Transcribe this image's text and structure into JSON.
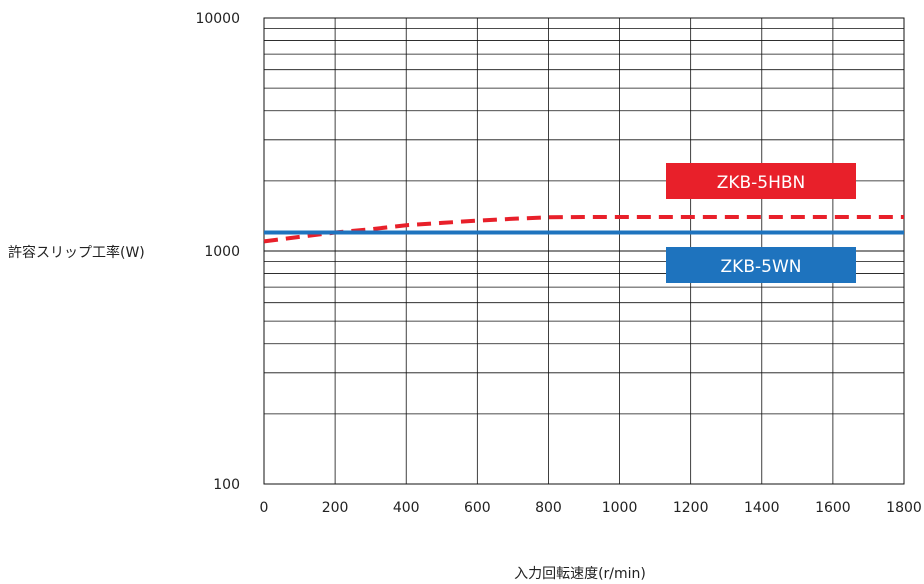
{
  "chart_data": {
    "type": "line",
    "title": "",
    "xlabel": "入力回転速度(r/min)",
    "ylabel": "許容スリップ工率(W)",
    "xlim": [
      0,
      1800
    ],
    "ylim": [
      100,
      10000
    ],
    "yscale": "log",
    "grid": true,
    "x_ticks": [
      "0",
      "200",
      "400",
      "600",
      "800",
      "1000",
      "1200",
      "1400",
      "1600",
      "1800"
    ],
    "y_ticks": [
      {
        "value": 100,
        "label": "100"
      },
      {
        "value": 1000,
        "label": "1000"
      },
      {
        "value": 10000,
        "label": "10000"
      }
    ],
    "legend_placement": "right, beside lines",
    "series": [
      {
        "name": "ZKB-5HBN",
        "color": "#e8202a",
        "style": "dashed",
        "x": [
          0,
          100,
          200,
          300,
          400,
          500,
          600,
          700,
          800,
          900,
          1000,
          1200,
          1400,
          1600,
          1800
        ],
        "y": [
          1100,
          1150,
          1200,
          1240,
          1290,
          1320,
          1350,
          1375,
          1395,
          1400,
          1400,
          1400,
          1400,
          1400,
          1400
        ]
      },
      {
        "name": "ZKB-5WN",
        "color": "#1e73be",
        "style": "solid",
        "x": [
          0,
          1800
        ],
        "y": [
          1200,
          1200
        ]
      }
    ]
  }
}
